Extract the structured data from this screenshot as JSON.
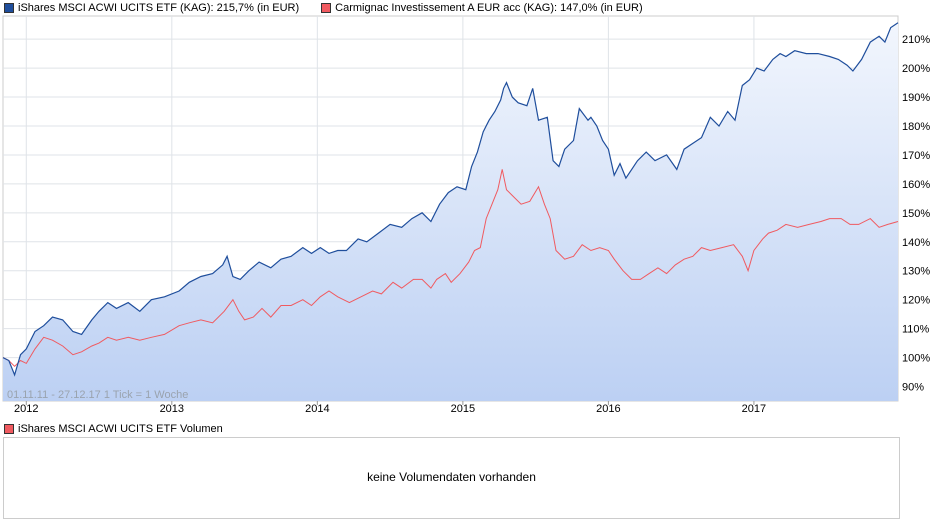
{
  "legend": {
    "series1_label": "iShares MSCI ACWI UCITS ETF (KAG): 215,7% (in EUR)",
    "series2_label": "Carmignac Investissement A EUR acc (KAG): 147,0% (in EUR)"
  },
  "colors": {
    "series1": "#1f4e9c",
    "series2": "#f05a60",
    "area_top": "#f2f6fd",
    "area_bottom": "#bcd0f3"
  },
  "info_text": "01.11.11 - 27.12.17   1 Tick = 1 Woche",
  "volume": {
    "legend_label": "iShares MSCI ACWI UCITS ETF Volumen",
    "message": "keine Volumendaten vorhanden"
  },
  "chart_data": {
    "type": "line",
    "title": "",
    "xlabel": "",
    "ylabel": "",
    "x_range": [
      "2011-11-01",
      "2017-12-27"
    ],
    "xlim": [
      2011.84,
      2017.99
    ],
    "ylim": [
      85,
      218
    ],
    "y_ticks": [
      90,
      100,
      110,
      120,
      130,
      140,
      150,
      160,
      170,
      180,
      190,
      200,
      210
    ],
    "y_tick_labels": [
      "90%",
      "100%",
      "110%",
      "120%",
      "130%",
      "140%",
      "150%",
      "160%",
      "170%",
      "180%",
      "190%",
      "200%",
      "210%"
    ],
    "x_ticks": [
      2012,
      2013,
      2014,
      2015,
      2016,
      2017
    ],
    "x_tick_labels": [
      "2012",
      "2013",
      "2014",
      "2015",
      "2016",
      "2017"
    ],
    "grid": true,
    "legend_position": "top-left",
    "series": [
      {
        "name": "iShares MSCI ACWI UCITS ETF (KAG): 215,7% (in EUR)",
        "points": [
          [
            2011.84,
            100
          ],
          [
            2011.88,
            99
          ],
          [
            2011.92,
            94
          ],
          [
            2011.96,
            101
          ],
          [
            2012.0,
            103
          ],
          [
            2012.06,
            109
          ],
          [
            2012.12,
            111
          ],
          [
            2012.18,
            114
          ],
          [
            2012.25,
            113
          ],
          [
            2012.32,
            109
          ],
          [
            2012.38,
            108
          ],
          [
            2012.45,
            113
          ],
          [
            2012.5,
            116
          ],
          [
            2012.56,
            119
          ],
          [
            2012.62,
            117
          ],
          [
            2012.7,
            119
          ],
          [
            2012.78,
            116
          ],
          [
            2012.86,
            120
          ],
          [
            2012.95,
            121
          ],
          [
            2013.05,
            123
          ],
          [
            2013.12,
            126
          ],
          [
            2013.2,
            128
          ],
          [
            2013.28,
            129
          ],
          [
            2013.35,
            132
          ],
          [
            2013.38,
            135
          ],
          [
            2013.42,
            128
          ],
          [
            2013.47,
            127
          ],
          [
            2013.53,
            130
          ],
          [
            2013.6,
            133
          ],
          [
            2013.68,
            131
          ],
          [
            2013.75,
            134
          ],
          [
            2013.82,
            135
          ],
          [
            2013.9,
            138
          ],
          [
            2013.96,
            136
          ],
          [
            2014.02,
            138
          ],
          [
            2014.08,
            136
          ],
          [
            2014.14,
            137
          ],
          [
            2014.2,
            137
          ],
          [
            2014.28,
            141
          ],
          [
            2014.34,
            140
          ],
          [
            2014.42,
            143
          ],
          [
            2014.5,
            146
          ],
          [
            2014.58,
            145
          ],
          [
            2014.65,
            148
          ],
          [
            2014.72,
            150
          ],
          [
            2014.78,
            147
          ],
          [
            2014.84,
            153
          ],
          [
            2014.9,
            157
          ],
          [
            2014.96,
            159
          ],
          [
            2015.02,
            158
          ],
          [
            2015.06,
            166
          ],
          [
            2015.1,
            171
          ],
          [
            2015.14,
            178
          ],
          [
            2015.18,
            182
          ],
          [
            2015.22,
            185
          ],
          [
            2015.26,
            189
          ],
          [
            2015.28,
            193
          ],
          [
            2015.3,
            195
          ],
          [
            2015.34,
            190
          ],
          [
            2015.38,
            188
          ],
          [
            2015.44,
            187
          ],
          [
            2015.48,
            193
          ],
          [
            2015.52,
            182
          ],
          [
            2015.58,
            183
          ],
          [
            2015.62,
            168
          ],
          [
            2015.66,
            166
          ],
          [
            2015.7,
            172
          ],
          [
            2015.76,
            175
          ],
          [
            2015.8,
            186
          ],
          [
            2015.86,
            182
          ],
          [
            2015.88,
            183
          ],
          [
            2015.92,
            180
          ],
          [
            2015.96,
            175
          ],
          [
            2016.0,
            172
          ],
          [
            2016.04,
            163
          ],
          [
            2016.08,
            167
          ],
          [
            2016.12,
            162
          ],
          [
            2016.16,
            165
          ],
          [
            2016.2,
            168
          ],
          [
            2016.26,
            171
          ],
          [
            2016.32,
            168
          ],
          [
            2016.4,
            170
          ],
          [
            2016.47,
            165
          ],
          [
            2016.52,
            172
          ],
          [
            2016.58,
            174
          ],
          [
            2016.64,
            176
          ],
          [
            2016.7,
            183
          ],
          [
            2016.76,
            180
          ],
          [
            2016.82,
            185
          ],
          [
            2016.87,
            182
          ],
          [
            2016.92,
            194
          ],
          [
            2016.97,
            196
          ],
          [
            2017.02,
            200
          ],
          [
            2017.07,
            199
          ],
          [
            2017.13,
            203
          ],
          [
            2017.18,
            205
          ],
          [
            2017.22,
            204
          ],
          [
            2017.28,
            206
          ],
          [
            2017.36,
            205
          ],
          [
            2017.44,
            205
          ],
          [
            2017.52,
            204
          ],
          [
            2017.58,
            203
          ],
          [
            2017.64,
            201
          ],
          [
            2017.68,
            199
          ],
          [
            2017.74,
            203
          ],
          [
            2017.8,
            209
          ],
          [
            2017.86,
            211
          ],
          [
            2017.9,
            209
          ],
          [
            2017.94,
            214
          ],
          [
            2017.99,
            215.7
          ]
        ]
      },
      {
        "name": "Carmignac Investissement A EUR acc (KAG): 147,0% (in EUR)",
        "points": [
          [
            2011.84,
            100
          ],
          [
            2011.88,
            99
          ],
          [
            2011.92,
            97
          ],
          [
            2011.96,
            99
          ],
          [
            2012.0,
            98
          ],
          [
            2012.06,
            103
          ],
          [
            2012.12,
            107
          ],
          [
            2012.18,
            106
          ],
          [
            2012.25,
            104
          ],
          [
            2012.32,
            101
          ],
          [
            2012.38,
            102
          ],
          [
            2012.45,
            104
          ],
          [
            2012.5,
            105
          ],
          [
            2012.56,
            107
          ],
          [
            2012.62,
            106
          ],
          [
            2012.7,
            107
          ],
          [
            2012.78,
            106
          ],
          [
            2012.86,
            107
          ],
          [
            2012.95,
            108
          ],
          [
            2013.05,
            111
          ],
          [
            2013.12,
            112
          ],
          [
            2013.2,
            113
          ],
          [
            2013.28,
            112
          ],
          [
            2013.36,
            116
          ],
          [
            2013.42,
            120
          ],
          [
            2013.46,
            116
          ],
          [
            2013.5,
            113
          ],
          [
            2013.56,
            114
          ],
          [
            2013.62,
            117
          ],
          [
            2013.68,
            114
          ],
          [
            2013.75,
            118
          ],
          [
            2013.82,
            118
          ],
          [
            2013.9,
            120
          ],
          [
            2013.96,
            118
          ],
          [
            2014.02,
            121
          ],
          [
            2014.08,
            123
          ],
          [
            2014.14,
            121
          ],
          [
            2014.22,
            119
          ],
          [
            2014.3,
            121
          ],
          [
            2014.38,
            123
          ],
          [
            2014.44,
            122
          ],
          [
            2014.52,
            126
          ],
          [
            2014.58,
            124
          ],
          [
            2014.66,
            127
          ],
          [
            2014.72,
            127
          ],
          [
            2014.78,
            124
          ],
          [
            2014.82,
            127
          ],
          [
            2014.88,
            129
          ],
          [
            2014.92,
            126
          ],
          [
            2014.98,
            129
          ],
          [
            2015.04,
            133
          ],
          [
            2015.08,
            137
          ],
          [
            2015.12,
            138
          ],
          [
            2015.16,
            148
          ],
          [
            2015.2,
            153
          ],
          [
            2015.24,
            158
          ],
          [
            2015.27,
            165
          ],
          [
            2015.3,
            158
          ],
          [
            2015.34,
            156
          ],
          [
            2015.4,
            153
          ],
          [
            2015.46,
            154
          ],
          [
            2015.52,
            159
          ],
          [
            2015.56,
            153
          ],
          [
            2015.6,
            148
          ],
          [
            2015.64,
            137
          ],
          [
            2015.7,
            134
          ],
          [
            2015.76,
            135
          ],
          [
            2015.82,
            139
          ],
          [
            2015.88,
            137
          ],
          [
            2015.94,
            138
          ],
          [
            2016.0,
            137
          ],
          [
            2016.04,
            134
          ],
          [
            2016.1,
            130
          ],
          [
            2016.16,
            127
          ],
          [
            2016.22,
            127
          ],
          [
            2016.28,
            129
          ],
          [
            2016.34,
            131
          ],
          [
            2016.4,
            129
          ],
          [
            2016.46,
            132
          ],
          [
            2016.52,
            134
          ],
          [
            2016.58,
            135
          ],
          [
            2016.64,
            138
          ],
          [
            2016.7,
            137
          ],
          [
            2016.78,
            138
          ],
          [
            2016.86,
            139
          ],
          [
            2016.92,
            135
          ],
          [
            2016.96,
            130
          ],
          [
            2017.0,
            137
          ],
          [
            2017.06,
            141
          ],
          [
            2017.1,
            143
          ],
          [
            2017.16,
            144
          ],
          [
            2017.22,
            146
          ],
          [
            2017.3,
            145
          ],
          [
            2017.38,
            146
          ],
          [
            2017.46,
            147
          ],
          [
            2017.52,
            148
          ],
          [
            2017.6,
            148
          ],
          [
            2017.66,
            146
          ],
          [
            2017.72,
            146
          ],
          [
            2017.8,
            148
          ],
          [
            2017.86,
            145
          ],
          [
            2017.92,
            146
          ],
          [
            2017.99,
            147.0
          ]
        ]
      }
    ]
  }
}
